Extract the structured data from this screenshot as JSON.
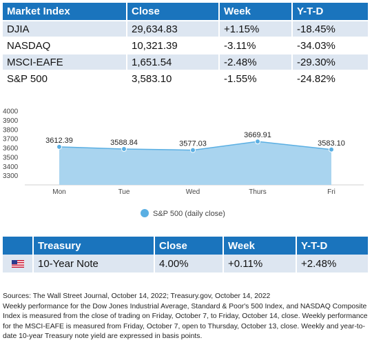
{
  "market_table": {
    "headers": [
      "Market Index",
      "Close",
      "Week",
      "Y-T-D"
    ],
    "rows": [
      [
        "DJIA",
        "29,634.83",
        "+1.15%",
        "-18.45%"
      ],
      [
        "NASDAQ",
        "10,321.39",
        "-3.11%",
        "-34.03%"
      ],
      [
        "MSCI-EAFE",
        "1,651.54",
        "-2.48%",
        "-29.30%"
      ],
      [
        "S&P 500",
        "3,583.10",
        "-1.55%",
        "-24.82%"
      ]
    ]
  },
  "chart_data": {
    "type": "area",
    "categories": [
      "Mon",
      "Tue",
      "Wed",
      "Thurs",
      "Fri"
    ],
    "series": [
      {
        "name": "S&P 500 (daily close)",
        "values": [
          3612.39,
          3588.84,
          3577.03,
          3669.91,
          3583.1
        ]
      }
    ],
    "data_labels": [
      "3612.39",
      "3588.84",
      "3577.03",
      "3669.91",
      "3583.10"
    ],
    "yticks": [
      3300,
      3400,
      3500,
      3600,
      3700,
      3800,
      3900,
      4000
    ],
    "ylim": [
      3200,
      4000
    ],
    "grid": true,
    "legend_position": "bottom",
    "color": "#a9d4ef",
    "line_color": "#5aafe3"
  },
  "legend": {
    "label": "S&P 500 (daily close)"
  },
  "treasury_table": {
    "headers": [
      "",
      "Treasury",
      "Close",
      "Week",
      "Y-T-D"
    ],
    "row": {
      "flag": "us-flag-icon",
      "name": "10-Year Note",
      "close": "4.00%",
      "week": "+0.11%",
      "ytd": "+2.48%"
    }
  },
  "sources": {
    "line1": "Sources: The Wall Street Journal, October 14, 2022; Treasury.gov, October 14, 2022",
    "line2": "Weekly performance for the Dow Jones Industrial Average, Standard & Poor's 500 Index, and NASDAQ Composite Index is measured from the close of trading on Friday, October 7, to Friday, October 14, close. Weekly performance for the MSCI-EAFE is measured from Friday, October 7, open to Thursday, October 13, close. Weekly and year-to-date 10-year Treasury note yield are expressed in basis points."
  }
}
